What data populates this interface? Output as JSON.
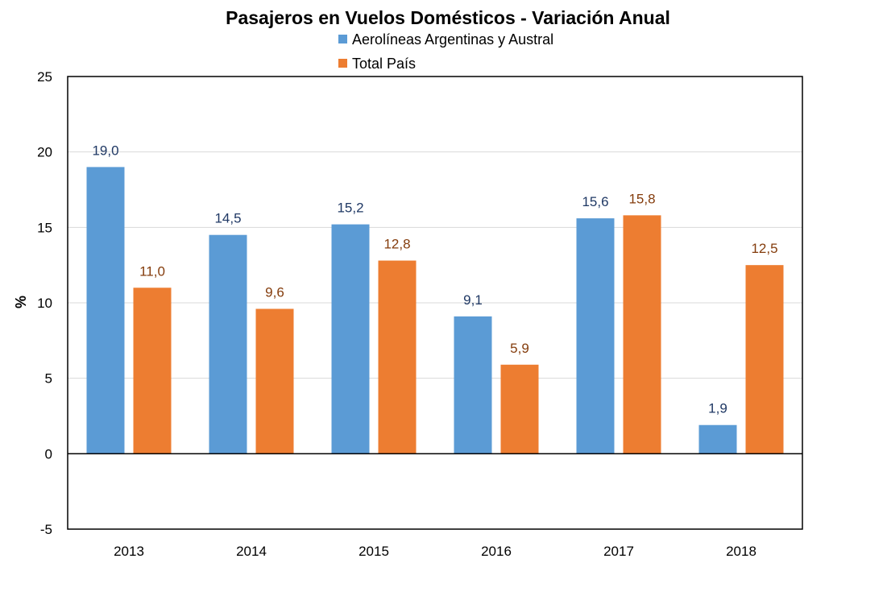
{
  "chart_data": {
    "type": "bar",
    "title": "Pasajeros en Vuelos Domésticos - Variación Anual",
    "ylabel": "%",
    "xlabel": "",
    "categories": [
      "2013",
      "2014",
      "2015",
      "2016",
      "2017",
      "2018"
    ],
    "series": [
      {
        "name": "Aerolíneas Argentinas y Austral",
        "values": [
          19.0,
          14.5,
          15.2,
          9.1,
          15.6,
          1.9
        ],
        "labels": [
          "19,0",
          "14,5",
          "15,2",
          "9,1",
          "15,6",
          "1,9"
        ],
        "color": "#5B9BD5",
        "label_color": "#1F3864"
      },
      {
        "name": "Total País",
        "values": [
          11.0,
          9.6,
          12.8,
          5.9,
          15.8,
          12.5
        ],
        "labels": [
          "11,0",
          "9,6",
          "12,8",
          "5,9",
          "15,8",
          "12,5"
        ],
        "color": "#ED7D31",
        "label_color": "#843C0C"
      }
    ],
    "ylim": [
      -5,
      25
    ],
    "yticks": [
      -5,
      0,
      5,
      10,
      15,
      20,
      25
    ],
    "ytick_labels": [
      "-5",
      "0",
      "5",
      "10",
      "15",
      "20",
      "25"
    ],
    "grid": true,
    "gridline_color": "#D9D9D9",
    "legend_position": "top"
  }
}
